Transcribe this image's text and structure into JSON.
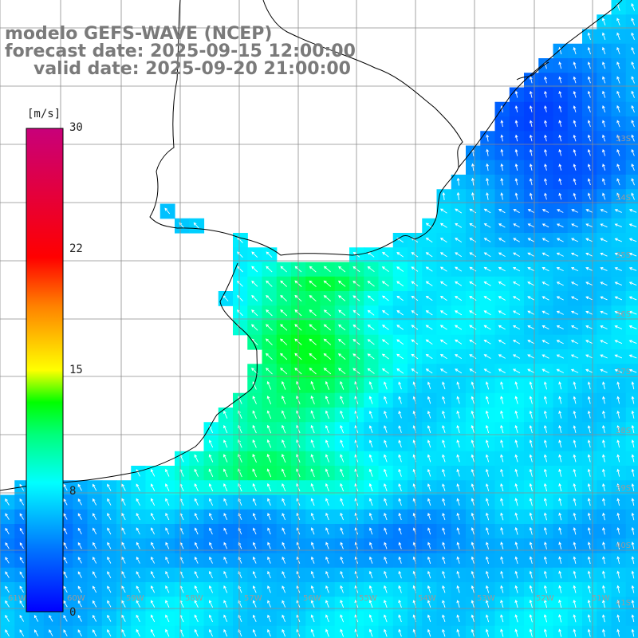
{
  "title": {
    "line1": "modelo GEFS-WAVE (NCEP)",
    "line2": "forecast date: 2025-09-15 12:00:00",
    "line3": "valid date: 2025-09-20 21:00:00"
  },
  "colorbar": {
    "unit": "[m/s]",
    "ticks": [
      {
        "value": 30,
        "label": "30"
      },
      {
        "value": 22,
        "label": "22"
      },
      {
        "value": 15,
        "label": "15"
      },
      {
        "value": 8,
        "label": "8"
      },
      {
        "value": 0,
        "label": "0"
      }
    ],
    "range": [
      0,
      30
    ],
    "stops": [
      {
        "value": 0,
        "color": "#0000ff"
      },
      {
        "value": 4,
        "color": "#0078ff"
      },
      {
        "value": 8,
        "color": "#00ffff"
      },
      {
        "value": 11,
        "color": "#00ff7a"
      },
      {
        "value": 13,
        "color": "#00ff00"
      },
      {
        "value": 15,
        "color": "#ffff00"
      },
      {
        "value": 19,
        "color": "#ff8000"
      },
      {
        "value": 22,
        "color": "#ff0000"
      },
      {
        "value": 30,
        "color": "#c8007a"
      }
    ]
  },
  "lon_labels": [
    "61W",
    "60W",
    "59W",
    "58W",
    "57W",
    "56W",
    "55W",
    "54W",
    "53W",
    "52W",
    "51W"
  ],
  "lat_labels": [
    "33S",
    "34S",
    "35S",
    "36S",
    "37S",
    "38S",
    "39S",
    "40S",
    "41S"
  ],
  "colors": {
    "background": "#ffffff",
    "grid": "#8c8c8c",
    "coast": "#000000",
    "arrow": "#ffffff",
    "title": "#7a7a7a"
  }
}
